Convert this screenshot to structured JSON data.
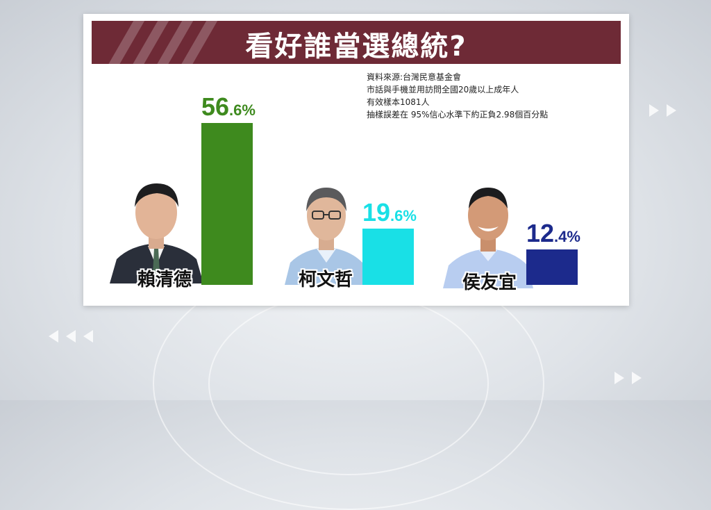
{
  "title": "看好誰當選總統?",
  "notes": [
    "資料來源:台灣民意基金會",
    "市話與手機並用訪問全國20歲以上成年人",
    "有效樣本1081人",
    "抽樣誤差在 95%信心水準下約正負2.98個百分點"
  ],
  "colors": {
    "header": "#6e2a36",
    "lai": "#3e8a1e",
    "ko": "#19e0e6",
    "hou": "#1c2a8c"
  },
  "chart_data": {
    "type": "bar",
    "title": "看好誰當選總統?",
    "categories": [
      "賴清德",
      "柯文哲",
      "侯友宜"
    ],
    "values": [
      56.6,
      19.6,
      12.4
    ],
    "value_labels": [
      {
        "int": "56",
        "dec": ".6%"
      },
      {
        "int": "19",
        "dec": ".6%"
      },
      {
        "int": "12",
        "dec": ".4%"
      }
    ],
    "unit": "%",
    "ylim": [
      0,
      56.6
    ],
    "grid": false,
    "legend": "none"
  }
}
